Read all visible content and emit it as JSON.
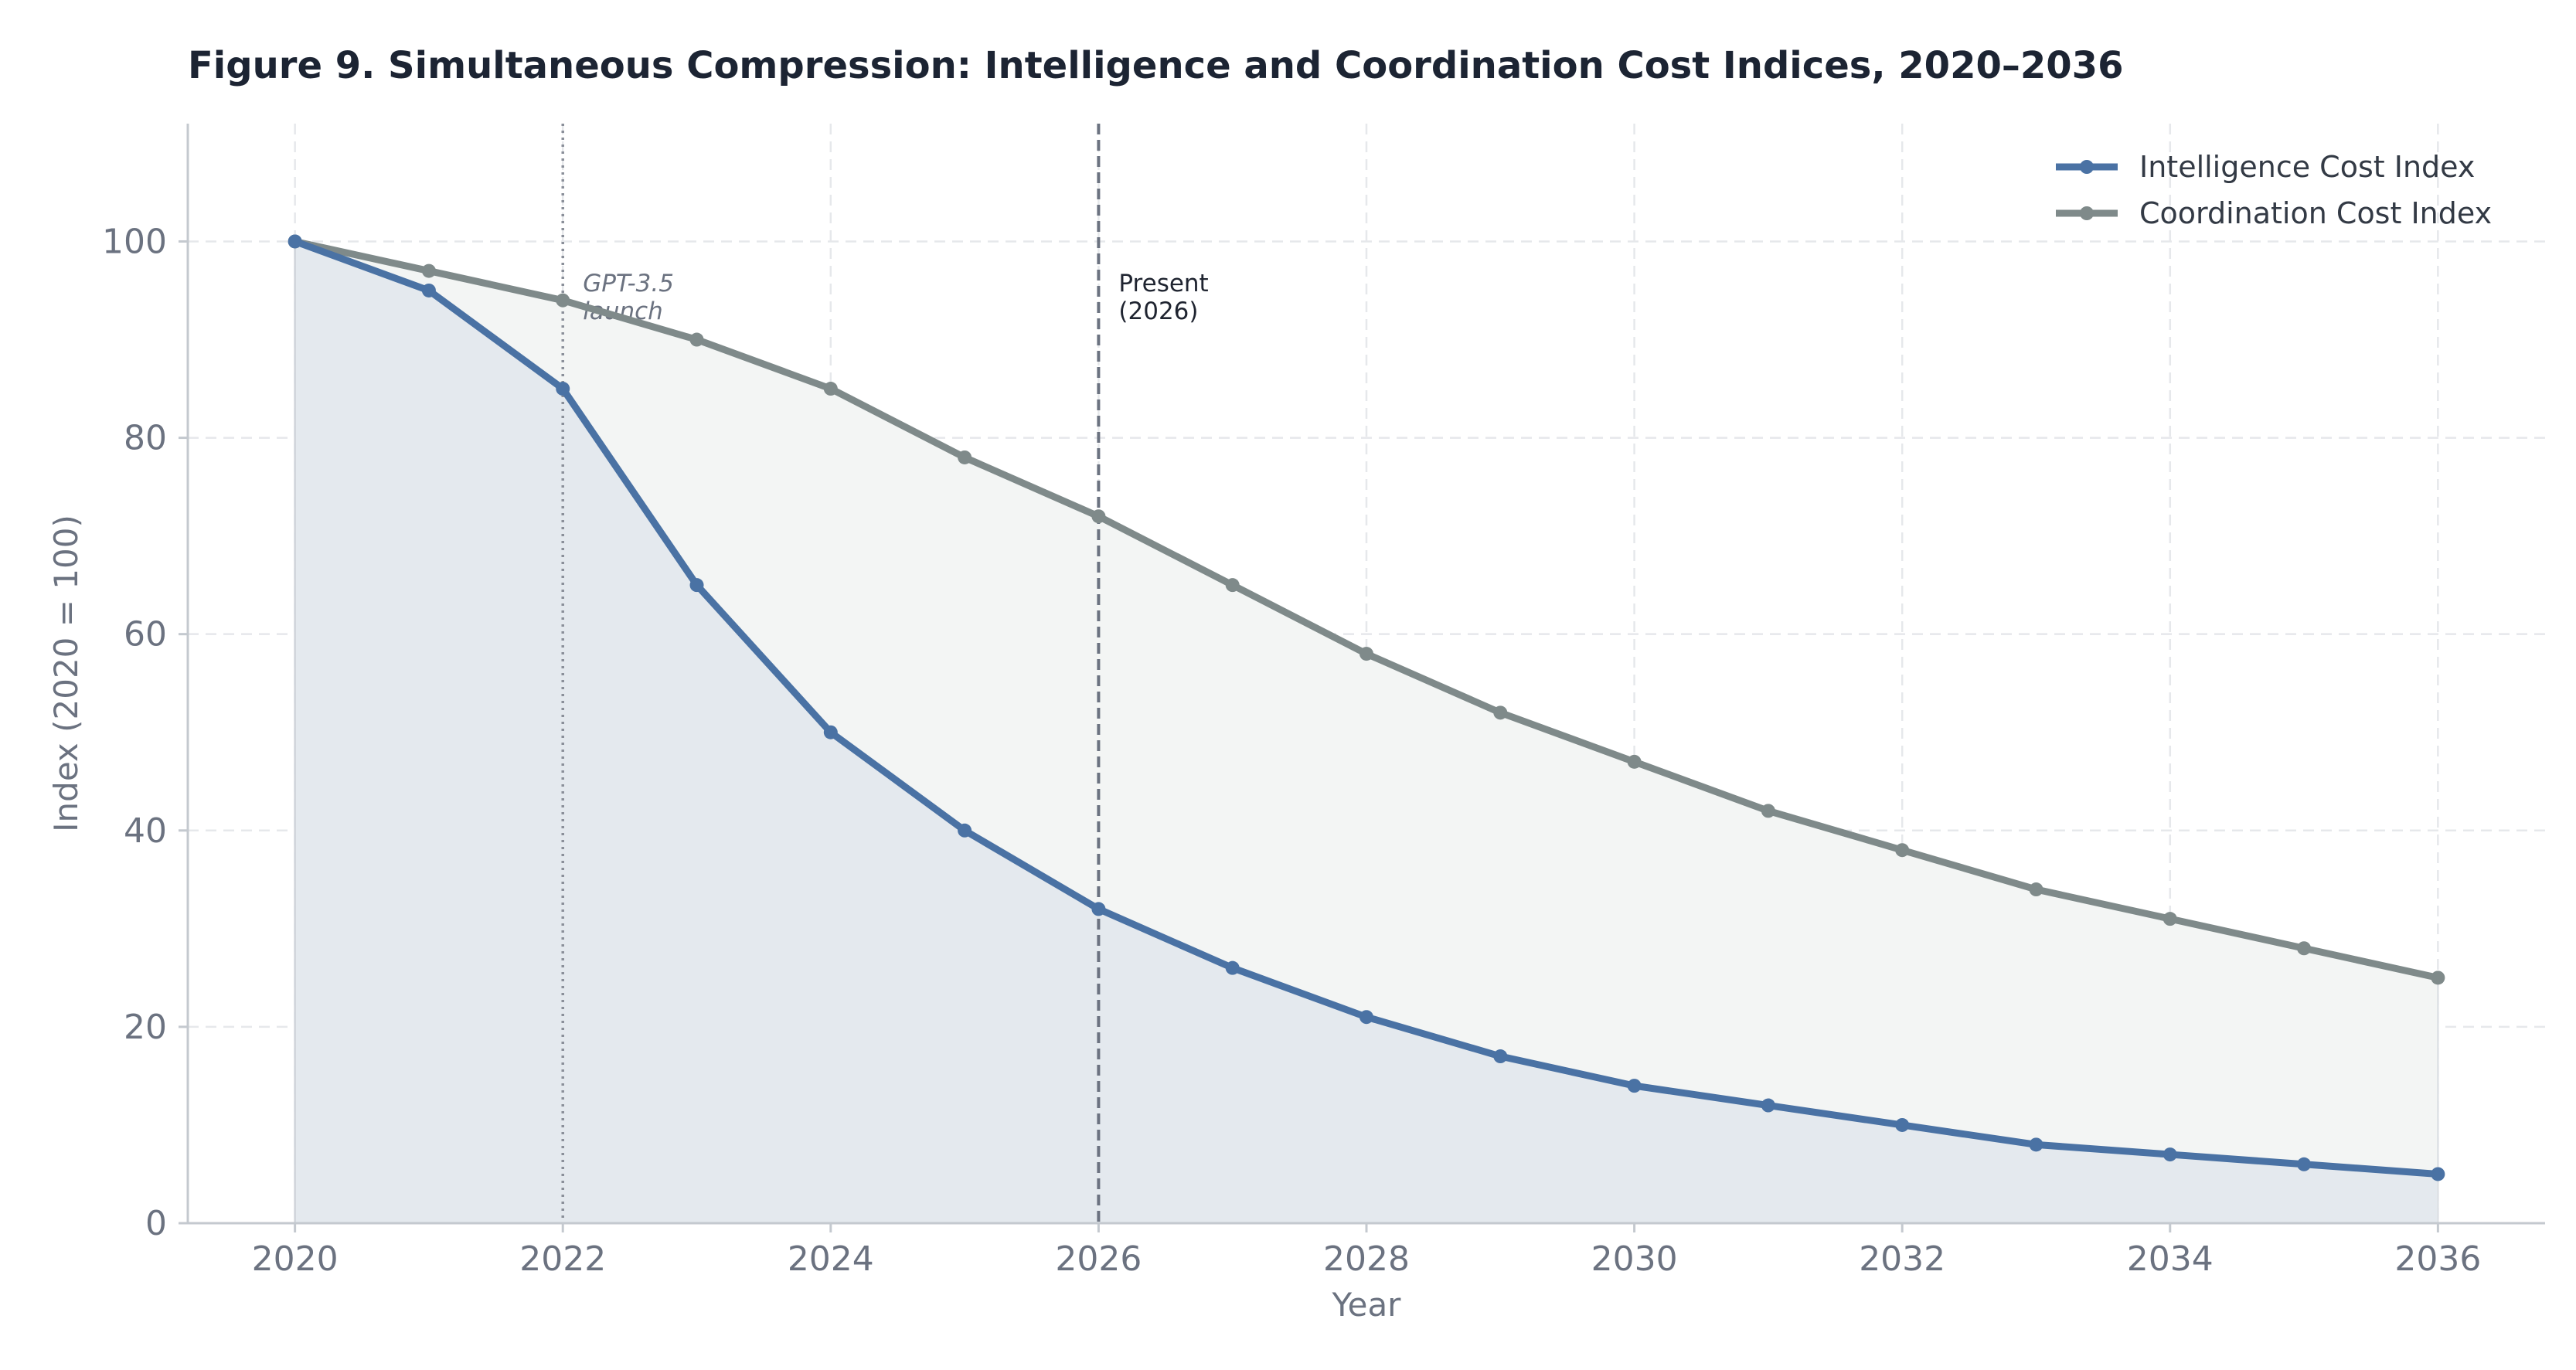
{
  "chart_data": {
    "type": "line",
    "title": "Figure 9.  Simultaneous Compression: Intelligence and Coordination Cost Indices, 2020–2036",
    "xlabel": "Year",
    "ylabel": "Index (2020 = 100)",
    "xlim": [
      2019.2,
      2036.8
    ],
    "ylim": [
      0,
      112
    ],
    "x_ticks": [
      2020,
      2022,
      2024,
      2026,
      2028,
      2030,
      2032,
      2034,
      2036
    ],
    "y_ticks": [
      0,
      20,
      40,
      60,
      80,
      100
    ],
    "grid": true,
    "legend_position": "top-right",
    "x": [
      2020,
      2021,
      2022,
      2023,
      2024,
      2025,
      2026,
      2027,
      2028,
      2029,
      2030,
      2031,
      2032,
      2033,
      2034,
      2035,
      2036
    ],
    "series": [
      {
        "name": "Intelligence Cost Index",
        "color": "#4a72a4",
        "fill_color": "#e4e9ee",
        "values": [
          100,
          95,
          85,
          65,
          50,
          40,
          32,
          26,
          21,
          17,
          14,
          12,
          10,
          8,
          7,
          6,
          5
        ]
      },
      {
        "name": "Coordination Cost Index",
        "color": "#7f8a8a",
        "fill_color": "#f3f5f4",
        "values": [
          100,
          97,
          94,
          90,
          85,
          78,
          72,
          65,
          58,
          52,
          47,
          42,
          38,
          34,
          31,
          28,
          25
        ]
      }
    ],
    "annotations": [
      {
        "x": 2022,
        "style": "dotted",
        "color": "#8a8f99",
        "lines": [
          "GPT-3.5",
          "launch"
        ]
      },
      {
        "x": 2026,
        "style": "dashed",
        "color": "#6b7280",
        "lines": [
          "Present",
          "(2026)"
        ]
      }
    ]
  }
}
